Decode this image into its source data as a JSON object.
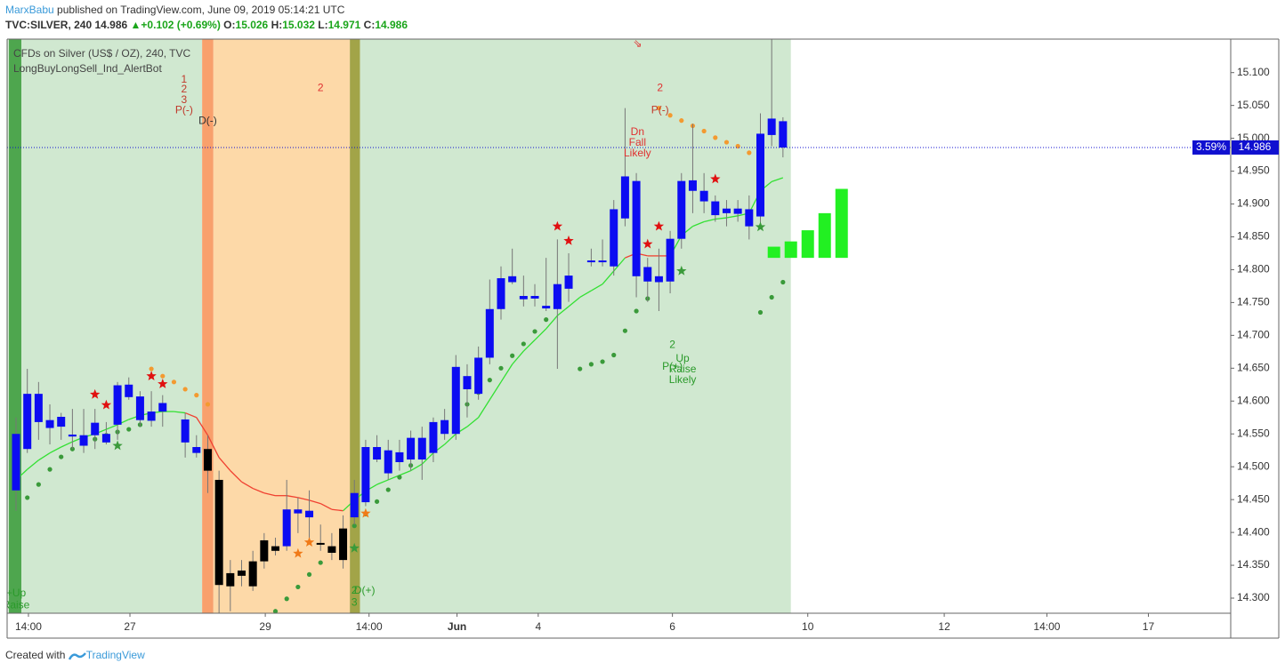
{
  "header": {
    "author": "MarxBabu",
    "published": "published on TradingView.com, June 09, 2019 05:14:21 UTC",
    "symbol": "TVC:SILVER, 240",
    "arrow": "▲",
    "change": "+0.102 (+0.69%)",
    "o": "O:",
    "h": "H:",
    "l": "L:",
    "c": "C:"
  },
  "footer": {
    "created": "Created with",
    "brand": "TradingView"
  },
  "chart_data": {
    "type": "candlestick",
    "legend": [
      "CFDs on Silver (US$ / OZ), 240, TVC",
      "LongBuyLongSell_Ind_AlertBot"
    ],
    "x": [
      0,
      1,
      2,
      3,
      4,
      5,
      6,
      7,
      8,
      9,
      10,
      11,
      12,
      13,
      15,
      16,
      17,
      18,
      19,
      20,
      21,
      22,
      23,
      24,
      25,
      26,
      27,
      28,
      29,
      30,
      31,
      32,
      33,
      34,
      35,
      36,
      37,
      38,
      39,
      40,
      41,
      42,
      43,
      44,
      45,
      46,
      47,
      48,
      49,
      51,
      52,
      53,
      54,
      55,
      56,
      57,
      58,
      59,
      60,
      61,
      62,
      63,
      64,
      65,
      66,
      67,
      68
    ],
    "open": [
      14.464,
      14.527,
      14.611,
      14.571,
      14.561,
      14.549,
      14.548,
      14.548,
      14.55,
      14.564,
      14.625,
      14.607,
      14.57,
      14.584,
      14.572,
      14.53,
      14.527,
      14.48,
      14.338,
      14.342,
      14.318,
      14.356,
      14.379,
      14.379,
      14.435,
      14.433,
      14.384,
      14.379,
      14.406,
      14.423,
      14.446,
      14.511,
      14.49,
      14.507,
      14.511,
      14.511,
      14.521,
      14.55,
      14.55,
      14.618,
      14.611,
      14.666,
      14.74,
      14.781,
      14.755,
      14.756,
      14.741,
      14.74,
      14.771,
      14.812,
      14.812,
      14.805,
      14.878,
      14.935,
      14.804,
      14.79,
      14.782,
      14.847,
      14.936,
      14.92,
      14.904,
      14.886,
      14.885,
      14.892,
      14.881,
      15.005,
      15.026
    ],
    "high": [
      14.575,
      14.649,
      14.629,
      14.595,
      14.582,
      14.588,
      14.588,
      14.588,
      14.568,
      14.629,
      14.636,
      14.615,
      14.615,
      14.609,
      14.582,
      14.548,
      14.548,
      14.494,
      14.358,
      14.358,
      14.372,
      14.399,
      14.392,
      14.48,
      14.453,
      14.464,
      14.412,
      14.399,
      14.426,
      14.48,
      14.541,
      14.548,
      14.541,
      14.541,
      14.555,
      14.561,
      14.575,
      14.588,
      14.67,
      14.656,
      14.683,
      14.785,
      14.805,
      14.832,
      14.791,
      14.778,
      14.818,
      14.846,
      14.825,
      14.832,
      14.846,
      14.906,
      15.046,
      14.947,
      14.818,
      14.832,
      14.859,
      14.947,
      15.022,
      14.947,
      14.913,
      14.906,
      14.906,
      14.913,
      15.038,
      15.151,
      15.032
    ],
    "low": [
      14.433,
      14.521,
      14.541,
      14.534,
      14.541,
      14.527,
      14.521,
      14.527,
      14.534,
      14.541,
      14.602,
      14.561,
      14.561,
      14.561,
      14.514,
      14.514,
      14.46,
      14.277,
      14.28,
      14.318,
      14.311,
      14.345,
      14.365,
      14.372,
      14.399,
      14.385,
      14.372,
      14.358,
      14.345,
      14.412,
      14.44,
      14.507,
      14.48,
      14.494,
      14.494,
      14.48,
      14.507,
      14.541,
      14.541,
      14.575,
      14.602,
      14.656,
      14.724,
      14.778,
      14.744,
      14.744,
      14.737,
      14.649,
      14.751,
      14.805,
      14.805,
      14.791,
      14.866,
      14.758,
      14.751,
      14.737,
      14.764,
      14.832,
      14.886,
      14.886,
      14.873,
      14.866,
      14.873,
      14.846,
      14.866,
      14.988,
      14.971
    ],
    "close": [
      14.55,
      14.611,
      14.568,
      14.559,
      14.576,
      14.546,
      14.532,
      14.567,
      14.537,
      14.624,
      14.606,
      14.571,
      14.584,
      14.597,
      14.537,
      14.521,
      14.494,
      14.32,
      14.318,
      14.334,
      14.356,
      14.388,
      14.372,
      14.435,
      14.429,
      14.423,
      14.383,
      14.369,
      14.358,
      14.46,
      14.53,
      14.53,
      14.525,
      14.522,
      14.544,
      14.544,
      14.568,
      14.571,
      14.652,
      14.638,
      14.666,
      14.74,
      14.787,
      14.79,
      14.76,
      14.76,
      14.745,
      14.778,
      14.791,
      14.814,
      14.814,
      14.892,
      14.942,
      14.79,
      14.782,
      14.781,
      14.847,
      14.935,
      14.92,
      14.904,
      14.883,
      14.893,
      14.893,
      14.866,
      15.007,
      15.03,
      14.986
    ],
    "color": "#0c0cf2",
    "alt_color": "#000000",
    "alt_ranges": [
      [
        17,
        23
      ],
      [
        27,
        29
      ]
    ],
    "price_change_label": "3.59%",
    "zones": [
      {
        "from": -0.79,
        "to": 16.5,
        "color": "#d0e8d0"
      },
      {
        "from": -0.63,
        "to": 0.47,
        "color": "#4ea64e"
      },
      {
        "from": 16.5,
        "to": 17.5,
        "color": "#f8a06c"
      },
      {
        "from": 17.5,
        "to": 29.6,
        "color": "#fdd9a8"
      },
      {
        "from": 29.6,
        "to": 30.5,
        "color": "#a2a448"
      },
      {
        "from": 30.5,
        "to": 68.7,
        "color": "#d0e8d0"
      }
    ],
    "ma": {
      "up_color": "#33e033",
      "down_color": "#f04030",
      "down_ranges": [
        [
          15,
          29
        ],
        [
          54,
          58
        ]
      ],
      "values": [
        14.48,
        14.496,
        14.51,
        14.521,
        14.53,
        14.538,
        14.545,
        14.55,
        14.557,
        14.564,
        14.572,
        14.578,
        14.582,
        14.584,
        14.584,
        14.582,
        14.575,
        14.548,
        14.514,
        14.494,
        14.477,
        14.467,
        14.46,
        14.456,
        14.456,
        14.453,
        14.449,
        14.444,
        14.435,
        14.433,
        14.449,
        14.463,
        14.473,
        14.48,
        14.487,
        14.494,
        14.504,
        14.521,
        14.534,
        14.55,
        14.561,
        14.575,
        14.602,
        14.629,
        14.656,
        14.676,
        14.693,
        14.71,
        14.73,
        14.744,
        14.758,
        14.768,
        14.778,
        14.798,
        14.818,
        14.825,
        14.821,
        14.821,
        14.821,
        14.852,
        14.866,
        14.873,
        14.877,
        14.879,
        14.882,
        14.886,
        14.92,
        14.934,
        14.94
      ]
    },
    "dots": [
      {
        "color": "#f39a30",
        "x": [
          12,
          13,
          14,
          15,
          16,
          17
        ],
        "values": [
          14.649,
          14.638,
          14.629,
          14.618,
          14.609,
          14.595
        ]
      },
      {
        "color": "#f39a30",
        "x": [
          57,
          58,
          59,
          60,
          61,
          62,
          63,
          64,
          65
        ],
        "values": [
          15.046,
          15.035,
          15.027,
          15.019,
          15.011,
          15.001,
          14.994,
          14.988,
          14.978
        ]
      },
      {
        "color": "#3a9a3a",
        "x": [
          1,
          2,
          3,
          4,
          5,
          6,
          7,
          8,
          9,
          10,
          11
        ],
        "values": [
          14.453,
          14.473,
          14.496,
          14.515,
          14.527,
          14.537,
          14.542,
          14.548,
          14.553,
          14.557,
          14.564
        ]
      },
      {
        "color": "#3a9a3a",
        "x": [
          23,
          24,
          25,
          26,
          27,
          28,
          29,
          30,
          31,
          32,
          33,
          34,
          35,
          36,
          37,
          38,
          39,
          40,
          41,
          42,
          43,
          44,
          45,
          46,
          47
        ],
        "values": [
          14.28,
          14.299,
          14.317,
          14.336,
          14.354,
          14.373,
          14.391,
          14.41,
          14.428,
          14.447,
          14.465,
          14.484,
          14.502,
          14.521,
          14.539,
          14.558,
          14.576,
          14.595,
          14.613,
          14.632,
          14.65,
          14.669,
          14.687,
          14.706,
          14.724
        ]
      },
      {
        "color": "#3a9a3a",
        "x": [
          50,
          51,
          52,
          53,
          54,
          55,
          56
        ],
        "values": [
          14.649,
          14.656,
          14.66,
          14.67,
          14.707,
          14.737,
          14.756
        ]
      },
      {
        "color": "#3a9a3a",
        "x": [
          66,
          67,
          68
        ],
        "values": [
          14.735,
          14.758,
          14.781
        ]
      }
    ],
    "stars": [
      {
        "color": "#e01010",
        "x": [
          7,
          8,
          12,
          13,
          48,
          49,
          56,
          57,
          62
        ],
        "values": [
          14.61,
          14.594,
          14.638,
          14.626,
          14.866,
          14.844,
          14.839,
          14.866,
          14.938
        ]
      },
      {
        "color": "#f07a18",
        "x": [
          25,
          26,
          31
        ],
        "values": [
          14.368,
          14.385,
          14.429
        ]
      },
      {
        "color": "#3a9a3a",
        "x": [
          9,
          59,
          66,
          30
        ],
        "values": [
          14.532,
          14.798,
          14.865,
          14.376
        ]
      }
    ],
    "histogram": {
      "color": "#22f022",
      "base": 14.818,
      "x": [
        67.2,
        68.7,
        70.2,
        71.7,
        73.2
      ],
      "values": [
        14.835,
        14.843,
        14.86,
        14.886,
        14.923
      ]
    },
    "annotations": [
      {
        "text": "1",
        "x": 14.9,
        "y": 15.089,
        "color": "#c0392b"
      },
      {
        "text": "2",
        "x": 14.9,
        "y": 15.074,
        "color": "#c0392b"
      },
      {
        "text": "3",
        "x": 14.9,
        "y": 15.058,
        "color": "#c0392b"
      },
      {
        "text": "P(-)",
        "x": 14.9,
        "y": 15.042,
        "color": "#c0392b"
      },
      {
        "text": "D(-)",
        "x": 17.0,
        "y": 15.026,
        "color": "#333333"
      },
      {
        "text": "2",
        "x": 27.0,
        "y": 15.076,
        "color": "#e03030"
      },
      {
        "text": "⇘",
        "x": 55.1,
        "y": 15.143,
        "color": "#e03030"
      },
      {
        "text": "2",
        "x": 57.1,
        "y": 15.076,
        "color": "#e03030"
      },
      {
        "text": "P(-)",
        "x": 57.1,
        "y": 15.042,
        "color": "#c0392b"
      },
      {
        "text": "Dn",
        "x": 55.1,
        "y": 15.009,
        "color": "#e03030"
      },
      {
        "text": "Fall",
        "x": 55.1,
        "y": 14.993,
        "color": "#e03030"
      },
      {
        "text": "Likely",
        "x": 55.1,
        "y": 14.977,
        "color": "#e03030"
      },
      {
        "text": "2",
        "x": 58.2,
        "y": 14.685,
        "color": "#2a9a2a"
      },
      {
        "text": "Up",
        "x": 59.1,
        "y": 14.664,
        "color": "#2a9a2a"
      },
      {
        "text": "P(+)",
        "x": 58.2,
        "y": 14.652,
        "color": "#2a9a2a"
      },
      {
        "text": "Raise",
        "x": 59.1,
        "y": 14.648,
        "color": "#2a9a2a"
      },
      {
        "text": "Likely",
        "x": 59.1,
        "y": 14.632,
        "color": "#2a9a2a"
      },
      {
        "text": "+Up",
        "x": 0,
        "y": 14.307,
        "color": "#2a9a2a"
      },
      {
        "text": "Raise",
        "x": 0,
        "y": 14.289,
        "color": "#2a9a2a"
      },
      {
        "text": "D(+)",
        "x": 30.9,
        "y": 14.311,
        "color": "#2a9a2a"
      },
      {
        "text": "2",
        "x": 30.0,
        "y": 14.311,
        "color": "#2a9a2a"
      },
      {
        "text": "3",
        "x": 30.0,
        "y": 14.293,
        "color": "#2a9a2a"
      }
    ],
    "xlim": [
      -0.79,
      107.7
    ],
    "ylim": [
      14.277,
      15.151
    ],
    "xticks": [
      {
        "value": 1.1,
        "label": "14:00"
      },
      {
        "value": 10.1,
        "label": "27"
      },
      {
        "value": 22.1,
        "label": "29"
      },
      {
        "value": 31.3,
        "label": "14:00"
      },
      {
        "value": 39.1,
        "label": "Jun"
      },
      {
        "value": 46.3,
        "label": "4"
      },
      {
        "value": 58.2,
        "label": "6"
      },
      {
        "value": 70.2,
        "label": "10"
      },
      {
        "value": 82.3,
        "label": "12"
      },
      {
        "value": 91.4,
        "label": "14:00"
      },
      {
        "value": 100.4,
        "label": "17"
      }
    ],
    "yticks": [
      {
        "value": 14.3,
        "label": "14.300"
      },
      {
        "value": 14.35,
        "label": "14.350"
      },
      {
        "value": 14.4,
        "label": "14.400"
      },
      {
        "value": 14.45,
        "label": "14.450"
      },
      {
        "value": 14.5,
        "label": "14.500"
      },
      {
        "value": 14.55,
        "label": "14.550"
      },
      {
        "value": 14.6,
        "label": "14.600"
      },
      {
        "value": 14.65,
        "label": "14.650"
      },
      {
        "value": 14.7,
        "label": "14.700"
      },
      {
        "value": 14.75,
        "label": "14.750"
      },
      {
        "value": 14.8,
        "label": "14.800"
      },
      {
        "value": 14.85,
        "label": "14.850"
      },
      {
        "value": 14.9,
        "label": "14.900"
      },
      {
        "value": 14.95,
        "label": "14.950"
      },
      {
        "value": 15.0,
        "label": "15.000"
      },
      {
        "value": 15.05,
        "label": "15.050"
      },
      {
        "value": 15.1,
        "label": "15.100"
      }
    ],
    "grid": false
  }
}
